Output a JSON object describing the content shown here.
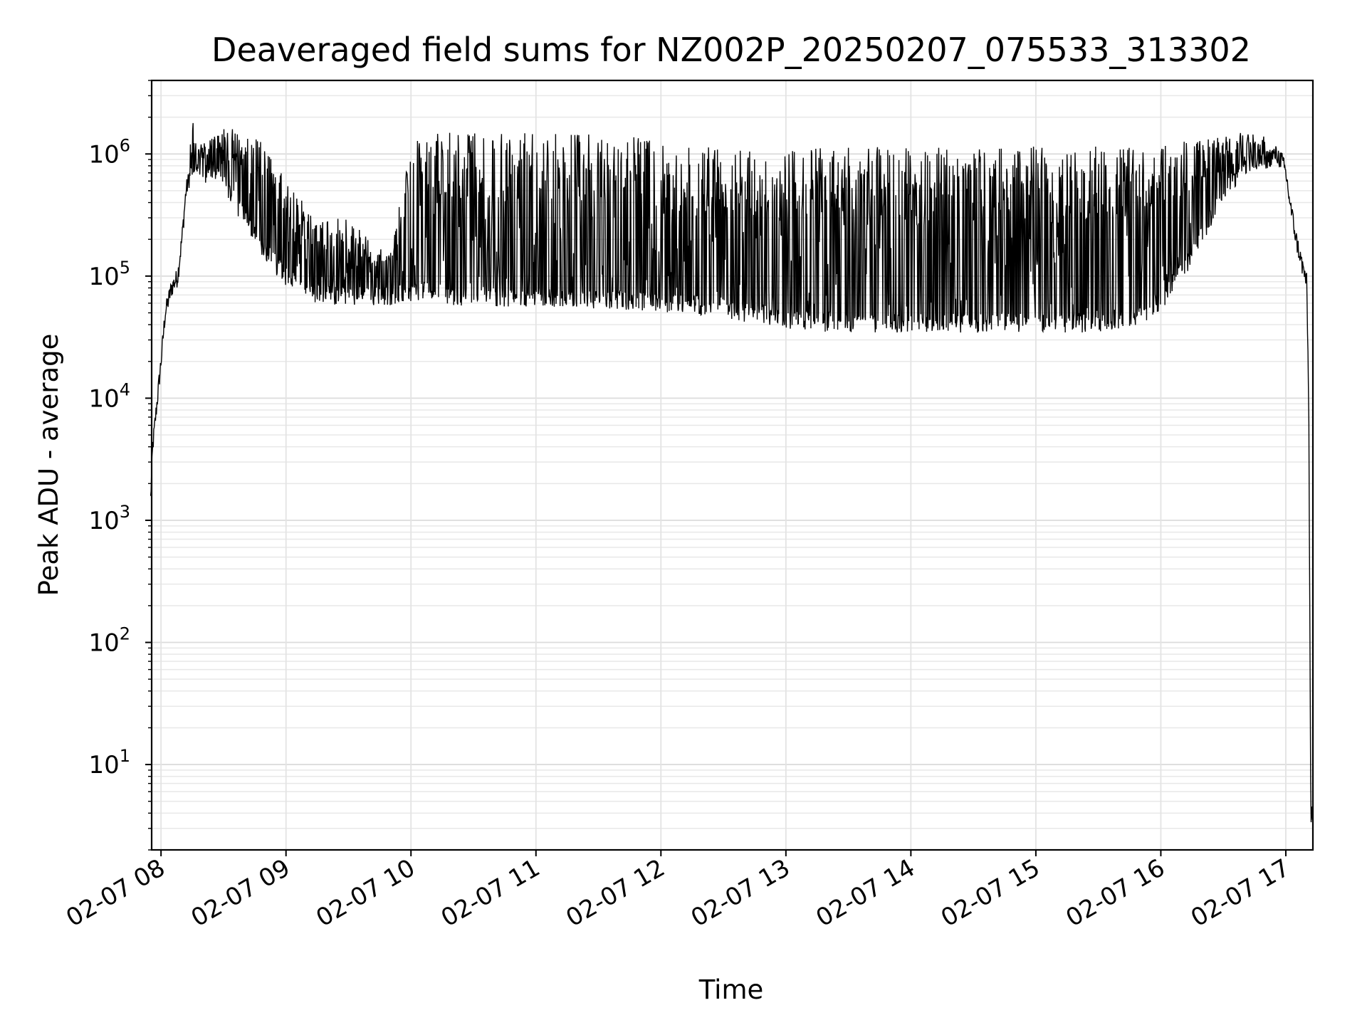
{
  "chart_data": {
    "type": "line",
    "title": "Deaveraged field sums for NZ002P_20250207_075533_313302",
    "xlabel": "Time",
    "ylabel": "Peak ADU - average",
    "y_scale": "log",
    "ylim": [
      2,
      4000000
    ],
    "xlim": [
      "2025-02-07 07:55:30",
      "2025-02-07 17:13:00"
    ],
    "grid": true,
    "x_ticks": [
      "02-07 08",
      "02-07 09",
      "02-07 10",
      "02-07 11",
      "02-07 12",
      "02-07 13",
      "02-07 14",
      "02-07 15",
      "02-07 16",
      "02-07 17"
    ],
    "y_ticks": [
      {
        "base": "10",
        "exp": "1",
        "value": 10
      },
      {
        "base": "10",
        "exp": "2",
        "value": 100
      },
      {
        "base": "10",
        "exp": "3",
        "value": 1000
      },
      {
        "base": "10",
        "exp": "4",
        "value": 10000
      },
      {
        "base": "10",
        "exp": "5",
        "value": 100000
      },
      {
        "base": "10",
        "exp": "6",
        "value": 1000000
      }
    ],
    "line_color": "#000000",
    "series": [
      {
        "x": [
          "07:55",
          "07:56",
          "07:58",
          "08:00",
          "08:02",
          "08:05",
          "08:08",
          "08:10",
          "08:12",
          "08:14",
          "08:15",
          "08:18",
          "08:20",
          "08:25",
          "08:30",
          "08:40",
          "08:50",
          "09:00",
          "09:10",
          "09:20",
          "09:30",
          "09:40",
          "09:50",
          "10:00",
          "10:10",
          "10:20",
          "10:30",
          "10:45",
          "11:00",
          "11:15",
          "11:30",
          "11:45",
          "12:00",
          "12:15",
          "12:30",
          "12:45",
          "13:00",
          "13:15",
          "13:30",
          "13:45",
          "14:00",
          "14:15",
          "14:30",
          "14:45",
          "15:00",
          "15:15",
          "15:30",
          "15:45",
          "16:00",
          "16:15",
          "16:30",
          "16:40",
          "16:50",
          "16:55",
          "16:58",
          "17:00",
          "17:02",
          "17:05",
          "17:08",
          "17:10",
          "17:11",
          "17:12",
          "17:13"
        ],
        "baseline": [
          1500,
          4000,
          9000,
          20000,
          50000,
          80000,
          100000,
          200000,
          500000,
          700000,
          800000,
          700000,
          600000,
          700000,
          600000,
          300000,
          160000,
          100000,
          75000,
          70000,
          70000,
          70000,
          70000,
          75000,
          80000,
          70000,
          70000,
          68000,
          68000,
          68000,
          66000,
          64000,
          62000,
          60000,
          55000,
          50000,
          45000,
          43000,
          42000,
          42000,
          42000,
          42000,
          42000,
          42000,
          42000,
          42000,
          42000,
          45000,
          60000,
          150000,
          500000,
          800000,
          900000,
          1000000,
          900000,
          700000,
          400000,
          200000,
          120000,
          90000,
          10000,
          4,
          4
        ],
        "peak_level": [
          1500,
          4000,
          9000,
          20000,
          50000,
          80000,
          100000,
          200000,
          500000,
          1200000,
          2000000,
          1300000,
          1200000,
          1400000,
          1600000,
          1600000,
          1200000,
          600000,
          400000,
          300000,
          300000,
          200000,
          150000,
          1200000,
          1500000,
          1500000,
          1500000,
          1500000,
          1600000,
          1500000,
          1500000,
          1500000,
          1200000,
          1150000,
          1150000,
          1150000,
          1150000,
          1150000,
          1150000,
          1150000,
          1150000,
          1150000,
          1150000,
          1150000,
          1150000,
          1150000,
          1150000,
          1150000,
          1200000,
          1300000,
          1450000,
          1500000,
          1400000,
          1000000,
          900000,
          700000,
          400000,
          200000,
          120000,
          90000,
          10000,
          4,
          4
        ]
      }
    ]
  }
}
